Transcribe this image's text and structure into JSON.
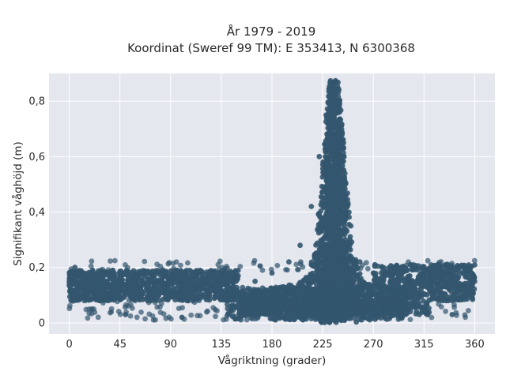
{
  "chart_data": {
    "type": "scatter",
    "title": "År 1979 - 2019",
    "subtitle": "Koordinat (Sweref 99 TM): E 353413, N 6300368",
    "xlabel": "Vågriktning (grader)",
    "ylabel": "Signifikant våghöjd (m)",
    "xlim": [
      -18,
      378
    ],
    "ylim": [
      -0.04,
      0.9
    ],
    "xticks": [
      0,
      45,
      90,
      135,
      180,
      225,
      270,
      315,
      360
    ],
    "yticks": [
      0,
      0.2,
      0.4,
      0.6,
      0.8
    ],
    "xtick_labels": [
      "0",
      "45",
      "90",
      "135",
      "180",
      "225",
      "270",
      "315",
      "360"
    ],
    "ytick_labels": [
      "0",
      "0,2",
      "0,4",
      "0,6",
      "0,8"
    ],
    "grid": true,
    "marker_color": "#33566e",
    "plot_background": "#e5e7ef",
    "sample_points": [
      [
        0,
        0.15
      ],
      [
        10,
        0.13
      ],
      [
        20,
        0.16
      ],
      [
        30,
        0.14
      ],
      [
        40,
        0.12
      ],
      [
        45,
        0.15
      ],
      [
        60,
        0.14
      ],
      [
        75,
        0.13
      ],
      [
        90,
        0.15
      ],
      [
        105,
        0.16
      ],
      [
        120,
        0.14
      ],
      [
        135,
        0.16
      ],
      [
        150,
        0.17
      ],
      [
        165,
        0.15
      ],
      [
        180,
        0.18
      ],
      [
        195,
        0.22
      ],
      [
        205,
        0.28
      ],
      [
        215,
        0.42
      ],
      [
        222,
        0.6
      ],
      [
        228,
        0.75
      ],
      [
        232,
        0.85
      ],
      [
        236,
        0.87
      ],
      [
        240,
        0.8
      ],
      [
        244,
        0.6
      ],
      [
        250,
        0.35
      ],
      [
        258,
        0.22
      ],
      [
        270,
        0.18
      ],
      [
        285,
        0.17
      ],
      [
        300,
        0.16
      ],
      [
        315,
        0.17
      ],
      [
        330,
        0.15
      ],
      [
        345,
        0.16
      ],
      [
        360,
        0.15
      ],
      [
        100,
        0.02
      ],
      [
        160,
        0.03
      ],
      [
        200,
        0.05
      ],
      [
        230,
        0.01
      ],
      [
        260,
        0.04
      ],
      [
        300,
        0.05
      ],
      [
        50,
        0.03
      ],
      [
        20,
        0.05
      ],
      [
        340,
        0.03
      ],
      [
        5,
        0.2
      ],
      [
        355,
        0.19
      ]
    ]
  }
}
